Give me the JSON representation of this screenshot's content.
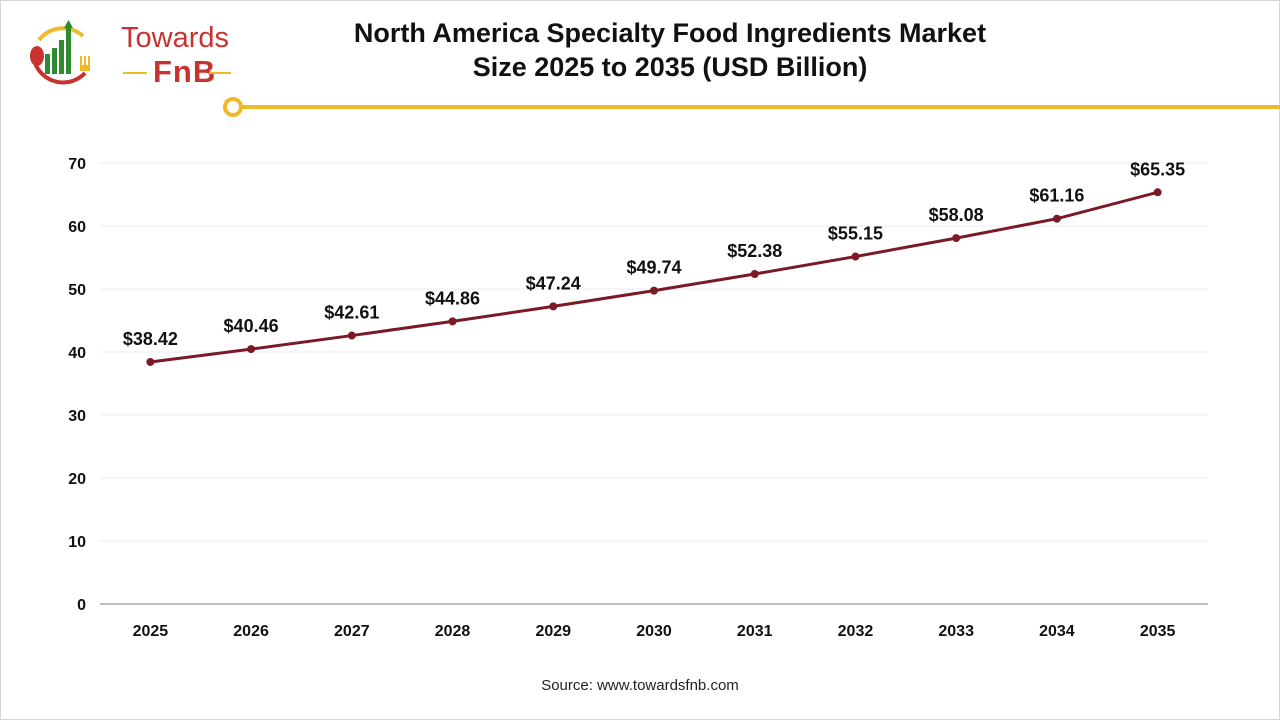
{
  "logo": {
    "line1": "Towards",
    "line2": "FnB"
  },
  "colors": {
    "line": "#7a1a26",
    "accent": "#f0b92a",
    "brand_red": "#c8322f",
    "brand_green": "#2e8b2e"
  },
  "source": "Source: www.towardsfnb.com",
  "chart_data": {
    "type": "line",
    "title": "North America Specialty Food Ingredients Market Size 2025 to 2035 (USD Billion)",
    "categories": [
      "2025",
      "2026",
      "2027",
      "2028",
      "2029",
      "2030",
      "2031",
      "2032",
      "2033",
      "2034",
      "2035"
    ],
    "values": [
      38.42,
      40.46,
      42.61,
      44.86,
      47.24,
      49.74,
      52.38,
      55.15,
      58.08,
      61.16,
      65.35
    ],
    "data_labels": [
      "$38.42",
      "$40.46",
      "$42.61",
      "$44.86",
      "$47.24",
      "$49.74",
      "$52.38",
      "$55.15",
      "$58.08",
      "$61.16",
      "$65.35"
    ],
    "ylim": [
      0,
      70
    ],
    "yticks": [
      0,
      10,
      20,
      30,
      40,
      50,
      60,
      70
    ],
    "grid": true,
    "xlabel": "",
    "ylabel": ""
  }
}
